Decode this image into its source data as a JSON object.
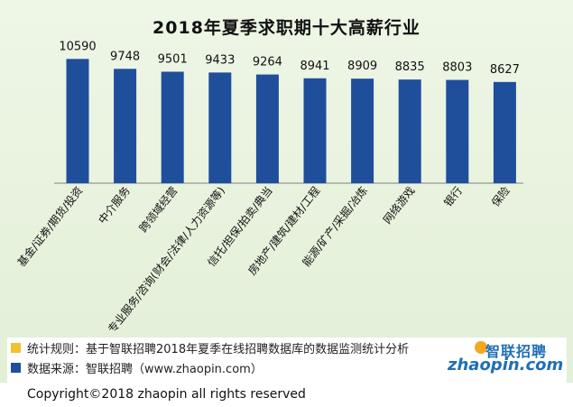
{
  "title": "2018年夏季求职期十大高薪行业",
  "colors": {
    "bar": "#1f4e9b",
    "note_yellow": "#f2c12e",
    "note_blue": "#1f4e9b",
    "logo": "#1e6fb6"
  },
  "chart_data": {
    "type": "bar",
    "categories": [
      "基金/证券/期货/投资",
      "中介服务",
      "跨领域经营",
      "专业服务/咨询(财会/法律/人力资源等)",
      "信托/担保/拍卖/典当",
      "房地产/建筑/建材/工程",
      "能源/矿产/采掘/冶炼",
      "网络游戏",
      "银行",
      "保险"
    ],
    "values": [
      10590,
      9748,
      9501,
      9433,
      9264,
      8941,
      8909,
      8835,
      8803,
      8627
    ],
    "value_labels": [
      "10590",
      "9748",
      "9501",
      "9433",
      "9264",
      "8941",
      "8909",
      "8835",
      "8803",
      "8627"
    ],
    "ylim": [
      0,
      11000
    ],
    "grid": false,
    "legend": "none"
  },
  "notes": [
    {
      "text": "统计规则：基于智联招聘2018年夏季在线招聘数据库的数据监测统计分析",
      "color_icon": "yellow-square-icon"
    },
    {
      "text": "数据来源：智联招聘（www.zhaopin.com）",
      "color_icon": "blue-square-icon"
    }
  ],
  "logo": {
    "cn": "智联招聘",
    "en": "zhaopin.com"
  },
  "copyright": "Copyright©2018 zhaopin all rights reserved"
}
